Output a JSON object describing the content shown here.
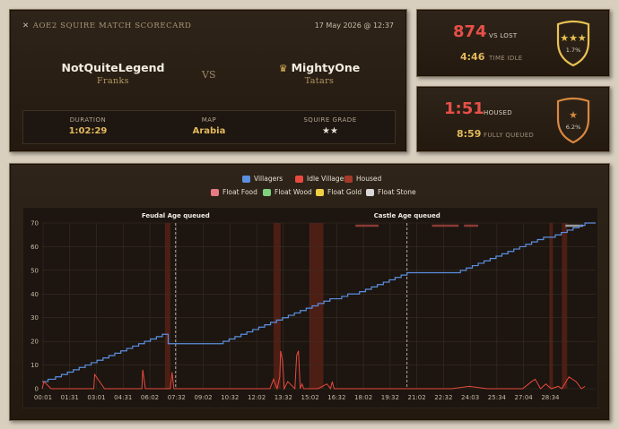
{
  "header": {
    "title": "AOE2 SQUIRE MATCH SCORECARD",
    "date": "17 May 2026 @ 12:37"
  },
  "players": [
    {
      "name": "NotQuiteLegend",
      "civ": "Franks"
    },
    {
      "name": "MightyOne",
      "civ": "Tatars",
      "crown": "crown-icon"
    }
  ],
  "vs": "VS",
  "info": [
    {
      "label": "DURATION",
      "value": "1:02:29"
    },
    {
      "label": "MAP",
      "value": "Arabia"
    },
    {
      "label": "SQUIRE GRADE",
      "value": "★★"
    }
  ],
  "stat1": {
    "big": "874",
    "big_label": "VS LOST",
    "small": "4:46",
    "small_label": "TIME IDLE",
    "badge_stars": "★★★",
    "badge_pct": "1.7%",
    "badge_color": "#e8c253"
  },
  "stat2": {
    "big": "1:51",
    "big_label": "HOUSED",
    "small": "8:59",
    "small_label": "FULLY QUEUED",
    "badge_stars": "★",
    "badge_pct": "6.2%",
    "badge_color": "#d98840"
  },
  "legend": [
    {
      "label": "Villagers",
      "color": "#5b8fe0"
    },
    {
      "label": "Idle Villagers",
      "color": "#e84a3f"
    },
    {
      "label": "Housed",
      "color": "#a53a2a"
    },
    {
      "label": "Float Food",
      "color": "#e87a82"
    },
    {
      "label": "Float Wood",
      "color": "#7fd17f"
    },
    {
      "label": "Float Gold",
      "color": "#f0d040"
    },
    {
      "label": "Float Stone",
      "color": "#d8d8d8"
    }
  ],
  "chart_data": {
    "type": "line",
    "xlabels": [
      "00:01",
      "01:31",
      "03:01",
      "04:31",
      "06:02",
      "07:32",
      "09:02",
      "10:32",
      "12:02",
      "13:32",
      "15:02",
      "16:32",
      "18:02",
      "19:32",
      "21:02",
      "22:32",
      "24:03",
      "25:34",
      "27:04",
      "28:34"
    ],
    "ylim": [
      0,
      70
    ],
    "yticks": [
      0,
      10,
      20,
      30,
      40,
      50,
      60,
      70
    ],
    "grid": true,
    "annotations": [
      {
        "label": "Feudal Age queued",
        "x": 7.5
      },
      {
        "label": "Castle Age queued",
        "x": 20.5
      }
    ],
    "housed_periods": [
      [
        6.9,
        7.2
      ],
      [
        13.0,
        13.4
      ],
      [
        15.0,
        15.8
      ],
      [
        28.5,
        28.7
      ],
      [
        29.2,
        29.5
      ]
    ],
    "float_stone_segments": [
      [
        17.6,
        18.9
      ],
      [
        21.9,
        23.4
      ],
      [
        23.7,
        24.5
      ],
      [
        29.4,
        30.4
      ]
    ],
    "series": [
      {
        "name": "Villagers",
        "color": "#5b8fe0",
        "x": [
          0,
          0.33,
          0.75,
          1.08,
          1.42,
          1.75,
          2.08,
          2.42,
          2.75,
          3.08,
          3.42,
          3.75,
          4.08,
          4.42,
          4.75,
          5.08,
          5.42,
          5.75,
          6.08,
          6.42,
          6.75,
          7.08,
          10.17,
          10.5,
          10.83,
          11.17,
          11.5,
          11.83,
          12.17,
          12.5,
          12.83,
          13.17,
          13.5,
          13.83,
          14.17,
          14.5,
          14.83,
          15.17,
          15.5,
          15.83,
          16.17,
          16.5,
          16.83,
          17.17,
          17.5,
          17.83,
          18.17,
          18.5,
          18.83,
          19.17,
          19.5,
          19.83,
          20.17,
          20.5,
          23.5,
          23.83,
          24.17,
          24.5,
          24.83,
          25.17,
          25.5,
          25.83,
          26.17,
          26.5,
          26.83,
          27.17,
          27.5,
          27.83,
          28.17,
          28.5,
          28.83,
          29.17,
          29.5,
          29.83,
          30.17,
          30.5
        ],
        "values": [
          3,
          4,
          5,
          6,
          7,
          8,
          9,
          10,
          11,
          12,
          13,
          14,
          15,
          16,
          17,
          18,
          19,
          20,
          21,
          22,
          23,
          19,
          20,
          21,
          22,
          23,
          24,
          25,
          26,
          27,
          28,
          29,
          30,
          31,
          32,
          33,
          34,
          35,
          36,
          37,
          38,
          38,
          39,
          40,
          40,
          41,
          42,
          43,
          44,
          45,
          46,
          47,
          48,
          49,
          50,
          51,
          52,
          53,
          54,
          55,
          56,
          57,
          58,
          59,
          60,
          61,
          62,
          63,
          64,
          64,
          65,
          66,
          67,
          68,
          69,
          70
        ]
      },
      {
        "name": "Idle Villagers",
        "color": "#e84a3f",
        "x": [
          0,
          0.1,
          0.5,
          0.6,
          1.6,
          1.7,
          2.3,
          2.9,
          2.95,
          3.5,
          5.5,
          5.6,
          5.65,
          5.8,
          7.2,
          7.3,
          7.4,
          7.6,
          7.8,
          9.0,
          10.0,
          11.5,
          12.0,
          12.8,
          13.0,
          13.2,
          13.35,
          13.4,
          13.5,
          13.6,
          13.8,
          14.2,
          14.3,
          14.4,
          14.5,
          14.6,
          14.7,
          15.0,
          15.2,
          15.5,
          16.0,
          16.2,
          16.3,
          16.4,
          16.6,
          16.8,
          17.0,
          17.5,
          18.5,
          19.5,
          20.5,
          21.0,
          22.0,
          23.0,
          24.0,
          25.0,
          26.0,
          27.0,
          27.5,
          27.7,
          28.0,
          28.3,
          28.6,
          29.0,
          29.2,
          29.6,
          30.0,
          30.3,
          30.5
        ],
        "values": [
          0,
          3,
          0,
          0,
          0,
          0,
          0,
          0,
          6,
          0,
          0,
          0,
          8,
          0,
          0,
          7,
          0,
          0,
          0,
          0,
          0,
          0,
          0,
          0,
          4,
          0,
          5,
          16,
          12,
          0,
          3,
          0,
          14,
          16,
          0,
          2,
          0,
          0,
          0,
          0,
          2,
          0,
          3,
          0,
          0,
          0,
          0,
          0,
          0,
          0,
          0,
          0,
          0,
          0,
          1,
          0,
          0,
          0,
          3,
          4,
          0,
          2,
          0,
          1,
          0,
          5,
          3,
          0,
          1
        ]
      }
    ]
  }
}
